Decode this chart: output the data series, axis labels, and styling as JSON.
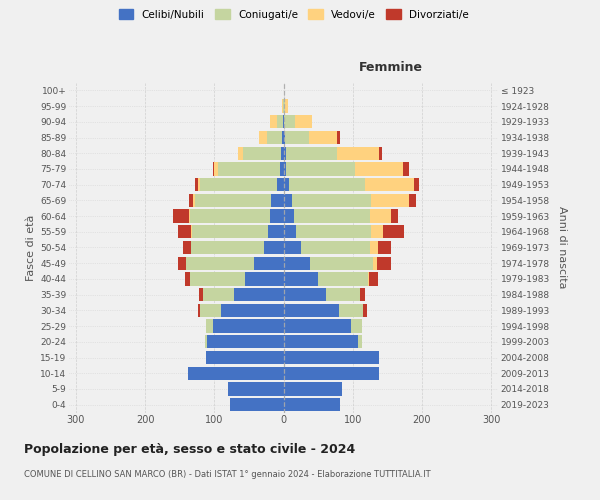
{
  "age_groups": [
    "0-4",
    "5-9",
    "10-14",
    "15-19",
    "20-24",
    "25-29",
    "30-34",
    "35-39",
    "40-44",
    "45-49",
    "50-54",
    "55-59",
    "60-64",
    "65-69",
    "70-74",
    "75-79",
    "80-84",
    "85-89",
    "90-94",
    "95-99",
    "100+"
  ],
  "birth_years": [
    "2019-2023",
    "2014-2018",
    "2009-2013",
    "2004-2008",
    "1999-2003",
    "1994-1998",
    "1989-1993",
    "1984-1988",
    "1979-1983",
    "1974-1978",
    "1969-1973",
    "1964-1968",
    "1959-1963",
    "1954-1958",
    "1949-1953",
    "1944-1948",
    "1939-1943",
    "1934-1938",
    "1929-1933",
    "1924-1928",
    "≤ 1923"
  ],
  "male": {
    "celibi": [
      78,
      80,
      138,
      112,
      110,
      102,
      90,
      72,
      55,
      43,
      28,
      22,
      20,
      18,
      10,
      5,
      3,
      2,
      1,
      0,
      0
    ],
    "coniugati": [
      0,
      0,
      0,
      0,
      3,
      10,
      30,
      45,
      80,
      98,
      105,
      110,
      115,
      110,
      110,
      90,
      55,
      22,
      8,
      1,
      0
    ],
    "vedovi": [
      0,
      0,
      0,
      0,
      0,
      0,
      0,
      0,
      0,
      0,
      0,
      1,
      2,
      3,
      3,
      5,
      8,
      12,
      10,
      1,
      0
    ],
    "divorziati": [
      0,
      0,
      0,
      0,
      0,
      0,
      3,
      5,
      8,
      12,
      12,
      20,
      22,
      6,
      5,
      2,
      0,
      0,
      0,
      0,
      0
    ]
  },
  "female": {
    "nubili": [
      82,
      85,
      138,
      138,
      108,
      98,
      80,
      62,
      50,
      38,
      25,
      18,
      15,
      12,
      8,
      3,
      3,
      2,
      1,
      0,
      0
    ],
    "coniugate": [
      0,
      0,
      0,
      0,
      5,
      15,
      35,
      48,
      72,
      92,
      100,
      108,
      110,
      115,
      110,
      100,
      75,
      35,
      15,
      2,
      0
    ],
    "vedove": [
      0,
      0,
      0,
      0,
      0,
      0,
      0,
      0,
      2,
      5,
      12,
      18,
      30,
      55,
      70,
      70,
      60,
      40,
      25,
      5,
      0
    ],
    "divorziate": [
      0,
      0,
      0,
      0,
      0,
      0,
      5,
      8,
      12,
      20,
      18,
      30,
      10,
      10,
      8,
      8,
      5,
      5,
      0,
      0,
      0
    ]
  },
  "colors": {
    "celibi": "#4472C4",
    "coniugati": "#C5D5A0",
    "vedovi": "#FFD27F",
    "divorziati": "#C0392B"
  },
  "xlim": 310,
  "title": "Popolazione per età, sesso e stato civile - 2024",
  "subtitle": "COMUNE DI CELLINO SAN MARCO (BR) - Dati ISTAT 1° gennaio 2024 - Elaborazione TUTTITALIA.IT",
  "ylabel_left": "Fasce di età",
  "ylabel_right": "Anni di nascita",
  "xlabel_femmine": "Femmine",
  "bg_color": "#f0f0f0",
  "grid_color": "#cccccc"
}
